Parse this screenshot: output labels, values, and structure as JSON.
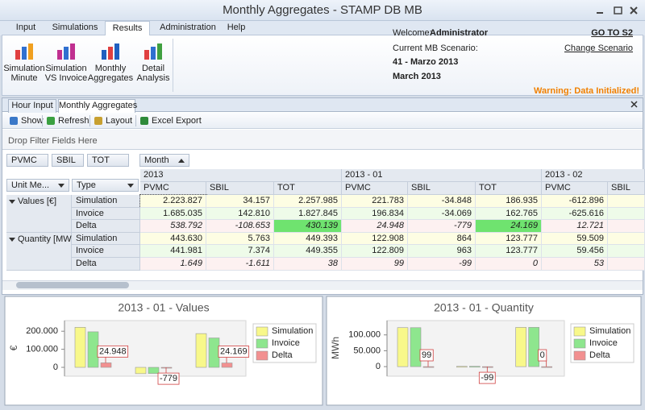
{
  "window": {
    "title": "Monthly Aggregates - STAMP DB MB"
  },
  "ribbon": {
    "tabs": [
      "Input",
      "Simulations",
      "Results",
      "Administration",
      "Help"
    ],
    "selected_tab": 2,
    "buttons": [
      [
        "Simulation",
        "Minute"
      ],
      [
        "Simulation",
        "VS Invoice"
      ],
      [
        "Monthly",
        "Aggregates"
      ],
      [
        "Detail",
        "Analysis"
      ]
    ]
  },
  "user": {
    "welcome_label": "Welcome:",
    "name": "Administrator",
    "scenario_label": "Current MB Scenario:",
    "scenario": "41 - Marzo 2013",
    "month": "March 2013",
    "goto_link": "GO TO S2",
    "change_link": "Change Scenario",
    "warning": "Warning: Data Initialized!"
  },
  "doc_tabs": {
    "tabs": [
      "Hour Input",
      "Monthly Aggregates"
    ],
    "selected": 1
  },
  "toolbar": [
    "Show",
    "Refresh",
    "Layout",
    "Excel Export"
  ],
  "pivot": {
    "filter_hint": "Drop Filter Fields Here",
    "filter_fields": [
      "PVMC",
      "SBIL",
      "TOT"
    ],
    "column_field": "Month",
    "row_fields": [
      "Unit Me...",
      "Type"
    ],
    "column_groups": [
      {
        "label": "2013",
        "columns": [
          "PVMC",
          "SBIL",
          "TOT"
        ]
      },
      {
        "label": "2013 - 01",
        "columns": [
          "PVMC",
          "SBIL",
          "TOT"
        ]
      },
      {
        "label": "2013 - 02",
        "columns": [
          "PVMC",
          "SBIL"
        ]
      }
    ],
    "highlight_color": "#6fe36f",
    "row_groups": [
      {
        "label": "Values [€]",
        "rows": [
          {
            "type": "Simulation",
            "cells": [
              "2.223.827",
              "34.157",
              "2.257.985",
              "221.783",
              "-34.848",
              "186.935",
              "-612.896"
            ]
          },
          {
            "type": "Invoice",
            "cells": [
              "1.685.035",
              "142.810",
              "1.827.845",
              "196.834",
              "-34.069",
              "162.765",
              "-625.616"
            ]
          },
          {
            "type": "Delta",
            "cells": [
              "538.792",
              "-108.653",
              "430.139",
              "24.948",
              "-779",
              "24.169",
              "12.721"
            ],
            "highlighted": [
              2,
              5
            ]
          }
        ]
      },
      {
        "label": "Quantity [MWh]",
        "rows": [
          {
            "type": "Simulation",
            "cells": [
              "443.630",
              "5.763",
              "449.393",
              "122.908",
              "864",
              "123.777",
              "59.509"
            ]
          },
          {
            "type": "Invoice",
            "cells": [
              "441.981",
              "7.374",
              "449.355",
              "122.809",
              "963",
              "123.777",
              "59.456"
            ]
          },
          {
            "type": "Delta",
            "cells": [
              "1.649",
              "-1.611",
              "38",
              "99",
              "-99",
              "0",
              "53"
            ]
          }
        ]
      }
    ]
  },
  "chart_data": [
    {
      "type": "bar",
      "title": "2013 - 01 - Values",
      "y_label": "€",
      "categories": [
        null,
        null,
        null
      ],
      "series": [
        {
          "name": "Simulation",
          "color": "#f8f88a",
          "values": [
            221783,
            -34848,
            186935
          ]
        },
        {
          "name": "Invoice",
          "color": "#8ee68e",
          "values": [
            196834,
            -34069,
            162765
          ]
        },
        {
          "name": "Delta",
          "color": "#f29090",
          "values": [
            24948,
            -779,
            24169
          ],
          "value_labels": [
            "24.948",
            "-779",
            "24.169"
          ]
        }
      ],
      "ylim": [
        -40000,
        250000
      ],
      "yticks": [
        0,
        {
          "value": 100000,
          "label": "100.000"
        },
        {
          "value": 200000,
          "label": "200.000"
        }
      ],
      "legend": "right"
    },
    {
      "type": "bar",
      "title": "2013 - 01 - Quantity",
      "y_label": "MWh",
      "categories": [
        null,
        null,
        null
      ],
      "series": [
        {
          "name": "Simulation",
          "color": "#f8f88a",
          "values": [
            122908,
            864,
            123777
          ]
        },
        {
          "name": "Invoice",
          "color": "#8ee68e",
          "values": [
            122809,
            963,
            123777
          ]
        },
        {
          "name": "Delta",
          "color": "#f29090",
          "values": [
            99,
            -99,
            0
          ],
          "value_labels": [
            "99",
            "-99",
            "0"
          ]
        }
      ],
      "ylim": [
        -25000,
        140000
      ],
      "yticks": [
        0,
        {
          "value": 50000,
          "label": "50.000"
        },
        {
          "value": 100000,
          "label": "100.000"
        }
      ],
      "legend": "right"
    }
  ]
}
